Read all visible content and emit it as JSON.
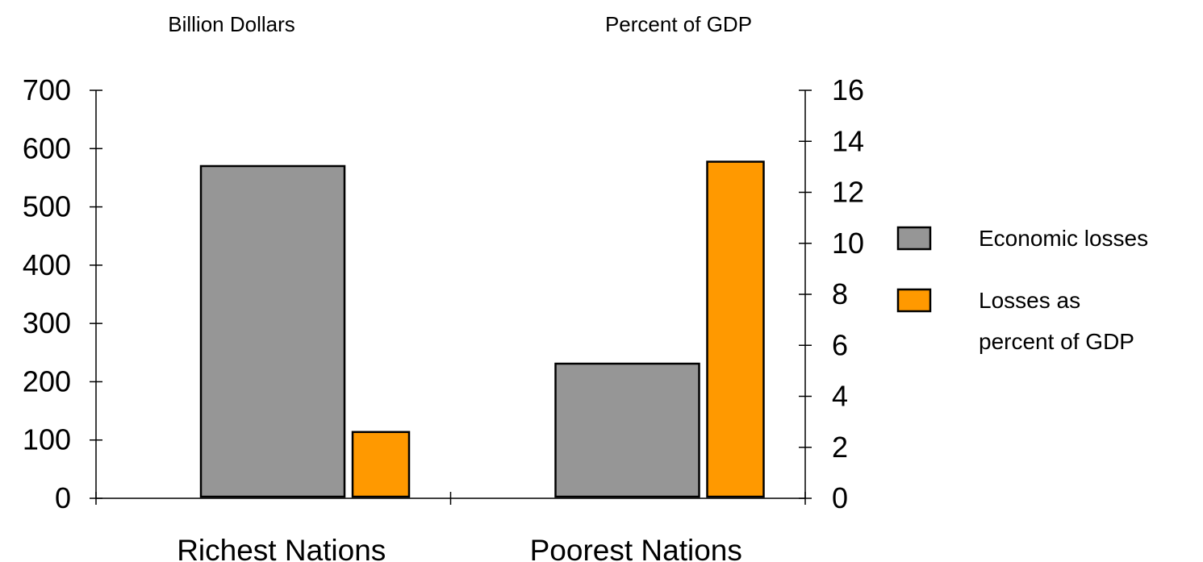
{
  "chart_data": {
    "type": "bar",
    "categories": [
      "Richest Nations",
      "Poorest Nations"
    ],
    "series": [
      {
        "name": "Economic losses",
        "axis": "left",
        "color": "#969696",
        "values": [
          570,
          231
        ]
      },
      {
        "name": "Losses as percent of GDP",
        "axis": "right",
        "color": "#FF9900",
        "values": [
          2.6,
          13.2
        ]
      }
    ],
    "legend_lines": [
      [
        "Economic losses"
      ],
      [
        "Losses as",
        "percent of GDP"
      ]
    ],
    "left_axis": {
      "title": "Billion Dollars",
      "ylim": [
        0,
        700
      ],
      "ticks": [
        0,
        100,
        200,
        300,
        400,
        500,
        600,
        700
      ]
    },
    "right_axis": {
      "title": "Percent of GDP",
      "ylim": [
        0,
        16
      ],
      "ticks": [
        0,
        2,
        4,
        6,
        8,
        10,
        12,
        14,
        16
      ]
    },
    "grid": false,
    "legend_position": "right"
  }
}
